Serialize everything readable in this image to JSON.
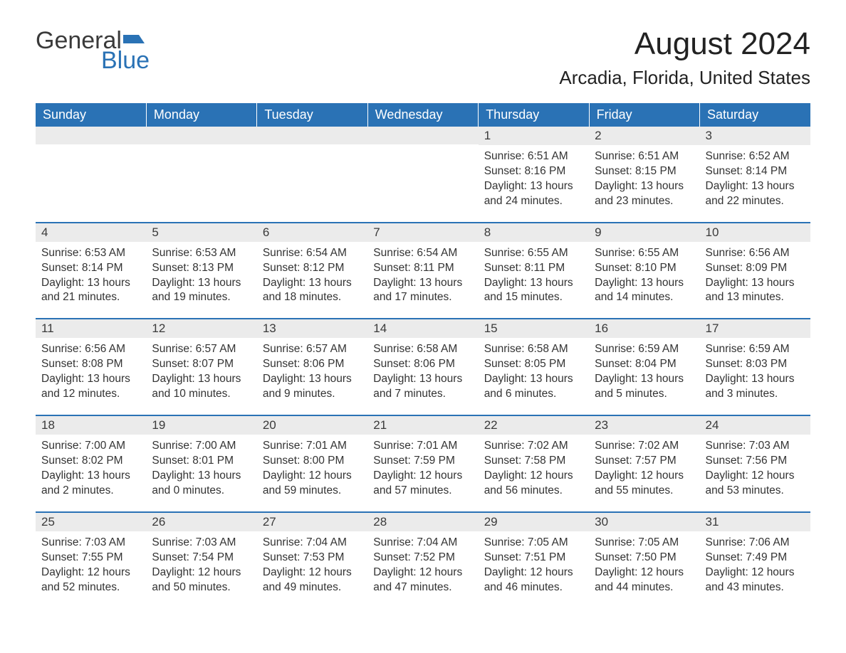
{
  "brand": {
    "word1": "General",
    "word2": "Blue",
    "accent_color": "#2a72b5"
  },
  "title": "August 2024",
  "location": "Arcadia, Florida, United States",
  "header_bg": "#2a72b5",
  "header_text_color": "#ffffff",
  "daynum_bg": "#ebebeb",
  "border_color": "#2a72b5",
  "body_text_color": "#333333",
  "day_headers": [
    "Sunday",
    "Monday",
    "Tuesday",
    "Wednesday",
    "Thursday",
    "Friday",
    "Saturday"
  ],
  "weeks": [
    [
      null,
      null,
      null,
      null,
      {
        "n": "1",
        "sunrise": "6:51 AM",
        "sunset": "8:16 PM",
        "daylight_h": 13,
        "daylight_m": 24
      },
      {
        "n": "2",
        "sunrise": "6:51 AM",
        "sunset": "8:15 PM",
        "daylight_h": 13,
        "daylight_m": 23
      },
      {
        "n": "3",
        "sunrise": "6:52 AM",
        "sunset": "8:14 PM",
        "daylight_h": 13,
        "daylight_m": 22
      }
    ],
    [
      {
        "n": "4",
        "sunrise": "6:53 AM",
        "sunset": "8:14 PM",
        "daylight_h": 13,
        "daylight_m": 21
      },
      {
        "n": "5",
        "sunrise": "6:53 AM",
        "sunset": "8:13 PM",
        "daylight_h": 13,
        "daylight_m": 19
      },
      {
        "n": "6",
        "sunrise": "6:54 AM",
        "sunset": "8:12 PM",
        "daylight_h": 13,
        "daylight_m": 18
      },
      {
        "n": "7",
        "sunrise": "6:54 AM",
        "sunset": "8:11 PM",
        "daylight_h": 13,
        "daylight_m": 17
      },
      {
        "n": "8",
        "sunrise": "6:55 AM",
        "sunset": "8:11 PM",
        "daylight_h": 13,
        "daylight_m": 15
      },
      {
        "n": "9",
        "sunrise": "6:55 AM",
        "sunset": "8:10 PM",
        "daylight_h": 13,
        "daylight_m": 14
      },
      {
        "n": "10",
        "sunrise": "6:56 AM",
        "sunset": "8:09 PM",
        "daylight_h": 13,
        "daylight_m": 13
      }
    ],
    [
      {
        "n": "11",
        "sunrise": "6:56 AM",
        "sunset": "8:08 PM",
        "daylight_h": 13,
        "daylight_m": 12
      },
      {
        "n": "12",
        "sunrise": "6:57 AM",
        "sunset": "8:07 PM",
        "daylight_h": 13,
        "daylight_m": 10
      },
      {
        "n": "13",
        "sunrise": "6:57 AM",
        "sunset": "8:06 PM",
        "daylight_h": 13,
        "daylight_m": 9
      },
      {
        "n": "14",
        "sunrise": "6:58 AM",
        "sunset": "8:06 PM",
        "daylight_h": 13,
        "daylight_m": 7
      },
      {
        "n": "15",
        "sunrise": "6:58 AM",
        "sunset": "8:05 PM",
        "daylight_h": 13,
        "daylight_m": 6
      },
      {
        "n": "16",
        "sunrise": "6:59 AM",
        "sunset": "8:04 PM",
        "daylight_h": 13,
        "daylight_m": 5
      },
      {
        "n": "17",
        "sunrise": "6:59 AM",
        "sunset": "8:03 PM",
        "daylight_h": 13,
        "daylight_m": 3
      }
    ],
    [
      {
        "n": "18",
        "sunrise": "7:00 AM",
        "sunset": "8:02 PM",
        "daylight_h": 13,
        "daylight_m": 2
      },
      {
        "n": "19",
        "sunrise": "7:00 AM",
        "sunset": "8:01 PM",
        "daylight_h": 13,
        "daylight_m": 0
      },
      {
        "n": "20",
        "sunrise": "7:01 AM",
        "sunset": "8:00 PM",
        "daylight_h": 12,
        "daylight_m": 59
      },
      {
        "n": "21",
        "sunrise": "7:01 AM",
        "sunset": "7:59 PM",
        "daylight_h": 12,
        "daylight_m": 57
      },
      {
        "n": "22",
        "sunrise": "7:02 AM",
        "sunset": "7:58 PM",
        "daylight_h": 12,
        "daylight_m": 56
      },
      {
        "n": "23",
        "sunrise": "7:02 AM",
        "sunset": "7:57 PM",
        "daylight_h": 12,
        "daylight_m": 55
      },
      {
        "n": "24",
        "sunrise": "7:03 AM",
        "sunset": "7:56 PM",
        "daylight_h": 12,
        "daylight_m": 53
      }
    ],
    [
      {
        "n": "25",
        "sunrise": "7:03 AM",
        "sunset": "7:55 PM",
        "daylight_h": 12,
        "daylight_m": 52
      },
      {
        "n": "26",
        "sunrise": "7:03 AM",
        "sunset": "7:54 PM",
        "daylight_h": 12,
        "daylight_m": 50
      },
      {
        "n": "27",
        "sunrise": "7:04 AM",
        "sunset": "7:53 PM",
        "daylight_h": 12,
        "daylight_m": 49
      },
      {
        "n": "28",
        "sunrise": "7:04 AM",
        "sunset": "7:52 PM",
        "daylight_h": 12,
        "daylight_m": 47
      },
      {
        "n": "29",
        "sunrise": "7:05 AM",
        "sunset": "7:51 PM",
        "daylight_h": 12,
        "daylight_m": 46
      },
      {
        "n": "30",
        "sunrise": "7:05 AM",
        "sunset": "7:50 PM",
        "daylight_h": 12,
        "daylight_m": 44
      },
      {
        "n": "31",
        "sunrise": "7:06 AM",
        "sunset": "7:49 PM",
        "daylight_h": 12,
        "daylight_m": 43
      }
    ]
  ],
  "labels": {
    "sunrise": "Sunrise:",
    "sunset": "Sunset:",
    "daylight": "Daylight:",
    "hours_word": "hours",
    "and_word": "and",
    "minutes_word": "minutes."
  }
}
